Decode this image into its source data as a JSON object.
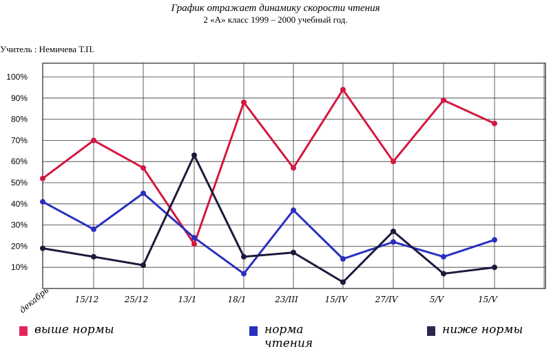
{
  "header": {
    "title": "График отражает динамику скорости чтения",
    "subtitle": "2 «А» класс 1999 – 2000 учебный год.",
    "teacher": "Учитель : Немичева Т.П."
  },
  "chart_data": {
    "type": "line",
    "title": "График отражает динамику скорости чтения",
    "xlabel": "",
    "ylabel": "",
    "ylim": [
      0,
      100
    ],
    "y_ticks": [
      "10%",
      "20%",
      "30%",
      "40%",
      "50%",
      "60%",
      "70%",
      "80%",
      "90%",
      "100%"
    ],
    "categories": [
      "декабрь",
      "15/12",
      "25/12",
      "13/1",
      "18/1",
      "23/III",
      "15/IV",
      "27/IV",
      "5/V",
      "15/V"
    ],
    "grid": true,
    "legend_position": "bottom",
    "series": [
      {
        "name": "выше нормы",
        "color": "#d4173f",
        "values": [
          52,
          70,
          57,
          21,
          88,
          57,
          94,
          60,
          89,
          78
        ]
      },
      {
        "name": "норма чтения",
        "color": "#2a2fc0",
        "values": [
          41,
          28,
          45,
          24,
          7,
          37,
          14,
          22,
          15,
          23
        ]
      },
      {
        "name": "ниже нормы",
        "color": "#1c1a3a",
        "values": [
          19,
          15,
          11,
          63,
          15,
          17,
          3,
          27,
          7,
          10
        ]
      }
    ]
  }
}
